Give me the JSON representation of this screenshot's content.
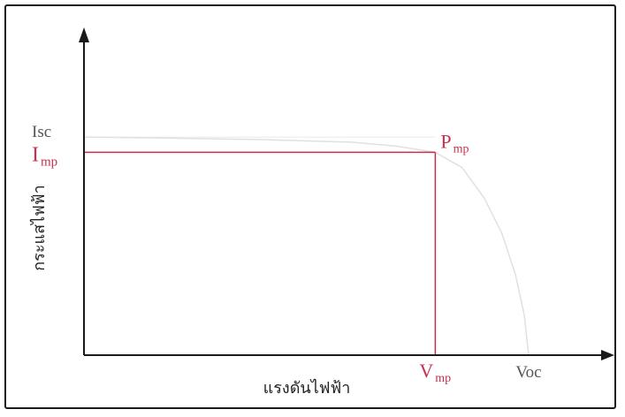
{
  "chart_data": {
    "type": "line",
    "title": "",
    "xlabel": "แรงดันไฟฟ้า",
    "ylabel": "กระแสไฟฟ้า",
    "xlim": [
      0,
      100
    ],
    "ylim": [
      0,
      100
    ],
    "grid": false,
    "legend": "none",
    "y_markers": [
      {
        "label": "Isc",
        "sub": "",
        "value": 86,
        "color": "#555555"
      },
      {
        "label": "I",
        "sub": "mp",
        "value": 80,
        "color": "#c8304f"
      }
    ],
    "x_markers": [
      {
        "label": "V",
        "sub": "mp",
        "value": 79,
        "color": "#c8304f"
      },
      {
        "label": "Voc",
        "sub": "",
        "value": 100,
        "color": "#555555"
      }
    ],
    "point_marker": {
      "label": "P",
      "sub": "mp",
      "x": 79,
      "y": 80,
      "color": "#c8304f"
    },
    "series": [
      {
        "values": [
          [
            0,
            86
          ],
          [
            20,
            85.6
          ],
          [
            40,
            85
          ],
          [
            60,
            84
          ],
          [
            70,
            82.5
          ],
          [
            79,
            80
          ],
          [
            85,
            74
          ],
          [
            90,
            62
          ],
          [
            94,
            48
          ],
          [
            97,
            32
          ],
          [
            99,
            16
          ],
          [
            100,
            0
          ]
        ],
        "color": "#e0e0e0"
      }
    ],
    "reference_color": "#ececec",
    "axis_color": "#1a1a1a",
    "pmp_line_color": "#c8304f"
  }
}
